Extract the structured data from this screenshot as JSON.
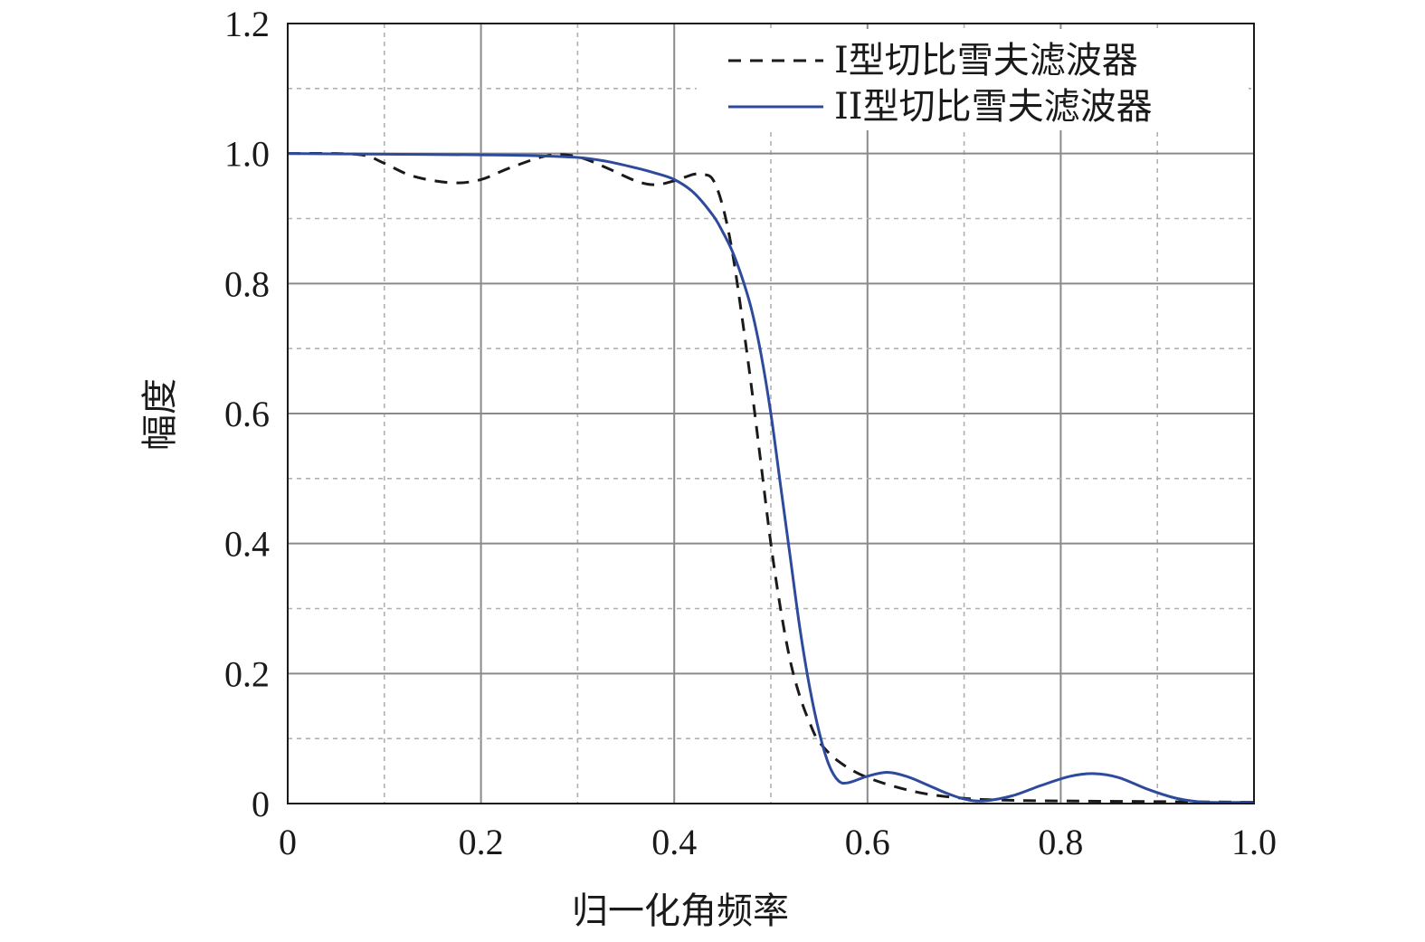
{
  "chart_data": {
    "type": "line",
    "title": "",
    "xlabel": "归一化角频率",
    "ylabel": "幅度",
    "xlim": [
      0,
      1.0
    ],
    "ylim": [
      0,
      1.2
    ],
    "xticks": [
      0,
      0.2,
      0.4,
      0.6,
      0.8,
      1.0
    ],
    "xtick_labels": [
      "0",
      "0.2",
      "0.4",
      "0.6",
      "0.8",
      "1.0"
    ],
    "yticks": [
      0,
      0.2,
      0.4,
      0.6,
      0.8,
      1.0,
      1.2
    ],
    "ytick_labels": [
      "0",
      "0.2",
      "0.4",
      "0.6",
      "0.8",
      "1.0",
      "1.2"
    ],
    "grid": true,
    "legend_position": "top-right",
    "series": [
      {
        "name": "I型切比雪夫滤波器",
        "style": "dashed",
        "color": "#1a1a1a",
        "x": [
          0,
          0.05,
          0.08,
          0.1,
          0.13,
          0.17,
          0.2,
          0.23,
          0.27,
          0.3,
          0.33,
          0.36,
          0.38,
          0.4,
          0.42,
          0.43,
          0.44,
          0.45,
          0.46,
          0.47,
          0.48,
          0.49,
          0.5,
          0.51,
          0.52,
          0.53,
          0.54,
          0.55,
          0.57,
          0.6,
          0.65,
          0.7,
          0.75,
          0.8,
          0.9,
          1.0
        ],
        "y": [
          1.0,
          1.0,
          0.997,
          0.985,
          0.965,
          0.955,
          0.96,
          0.978,
          0.997,
          0.995,
          0.978,
          0.958,
          0.952,
          0.958,
          0.968,
          0.968,
          0.96,
          0.92,
          0.85,
          0.75,
          0.64,
          0.52,
          0.4,
          0.3,
          0.22,
          0.165,
          0.125,
          0.095,
          0.065,
          0.04,
          0.018,
          0.008,
          0.005,
          0.004,
          0.003,
          0.002
        ]
      },
      {
        "name": "II型切比雪夫滤波器",
        "style": "solid",
        "color": "#2e4a9c",
        "x": [
          0,
          0.1,
          0.2,
          0.25,
          0.3,
          0.33,
          0.36,
          0.38,
          0.4,
          0.42,
          0.44,
          0.45,
          0.46,
          0.47,
          0.48,
          0.49,
          0.5,
          0.51,
          0.52,
          0.53,
          0.54,
          0.55,
          0.56,
          0.57,
          0.58,
          0.6,
          0.62,
          0.64,
          0.66,
          0.68,
          0.7,
          0.72,
          0.75,
          0.78,
          0.81,
          0.835,
          0.86,
          0.89,
          0.92,
          0.95,
          1.0
        ],
        "y": [
          1.0,
          0.999,
          0.998,
          0.997,
          0.994,
          0.988,
          0.978,
          0.97,
          0.96,
          0.94,
          0.905,
          0.88,
          0.85,
          0.81,
          0.76,
          0.69,
          0.6,
          0.49,
          0.38,
          0.27,
          0.18,
          0.11,
          0.06,
          0.035,
          0.032,
          0.042,
          0.048,
          0.042,
          0.03,
          0.017,
          0.007,
          0.004,
          0.012,
          0.028,
          0.042,
          0.046,
          0.04,
          0.022,
          0.008,
          0.002,
          0.002
        ]
      }
    ]
  }
}
